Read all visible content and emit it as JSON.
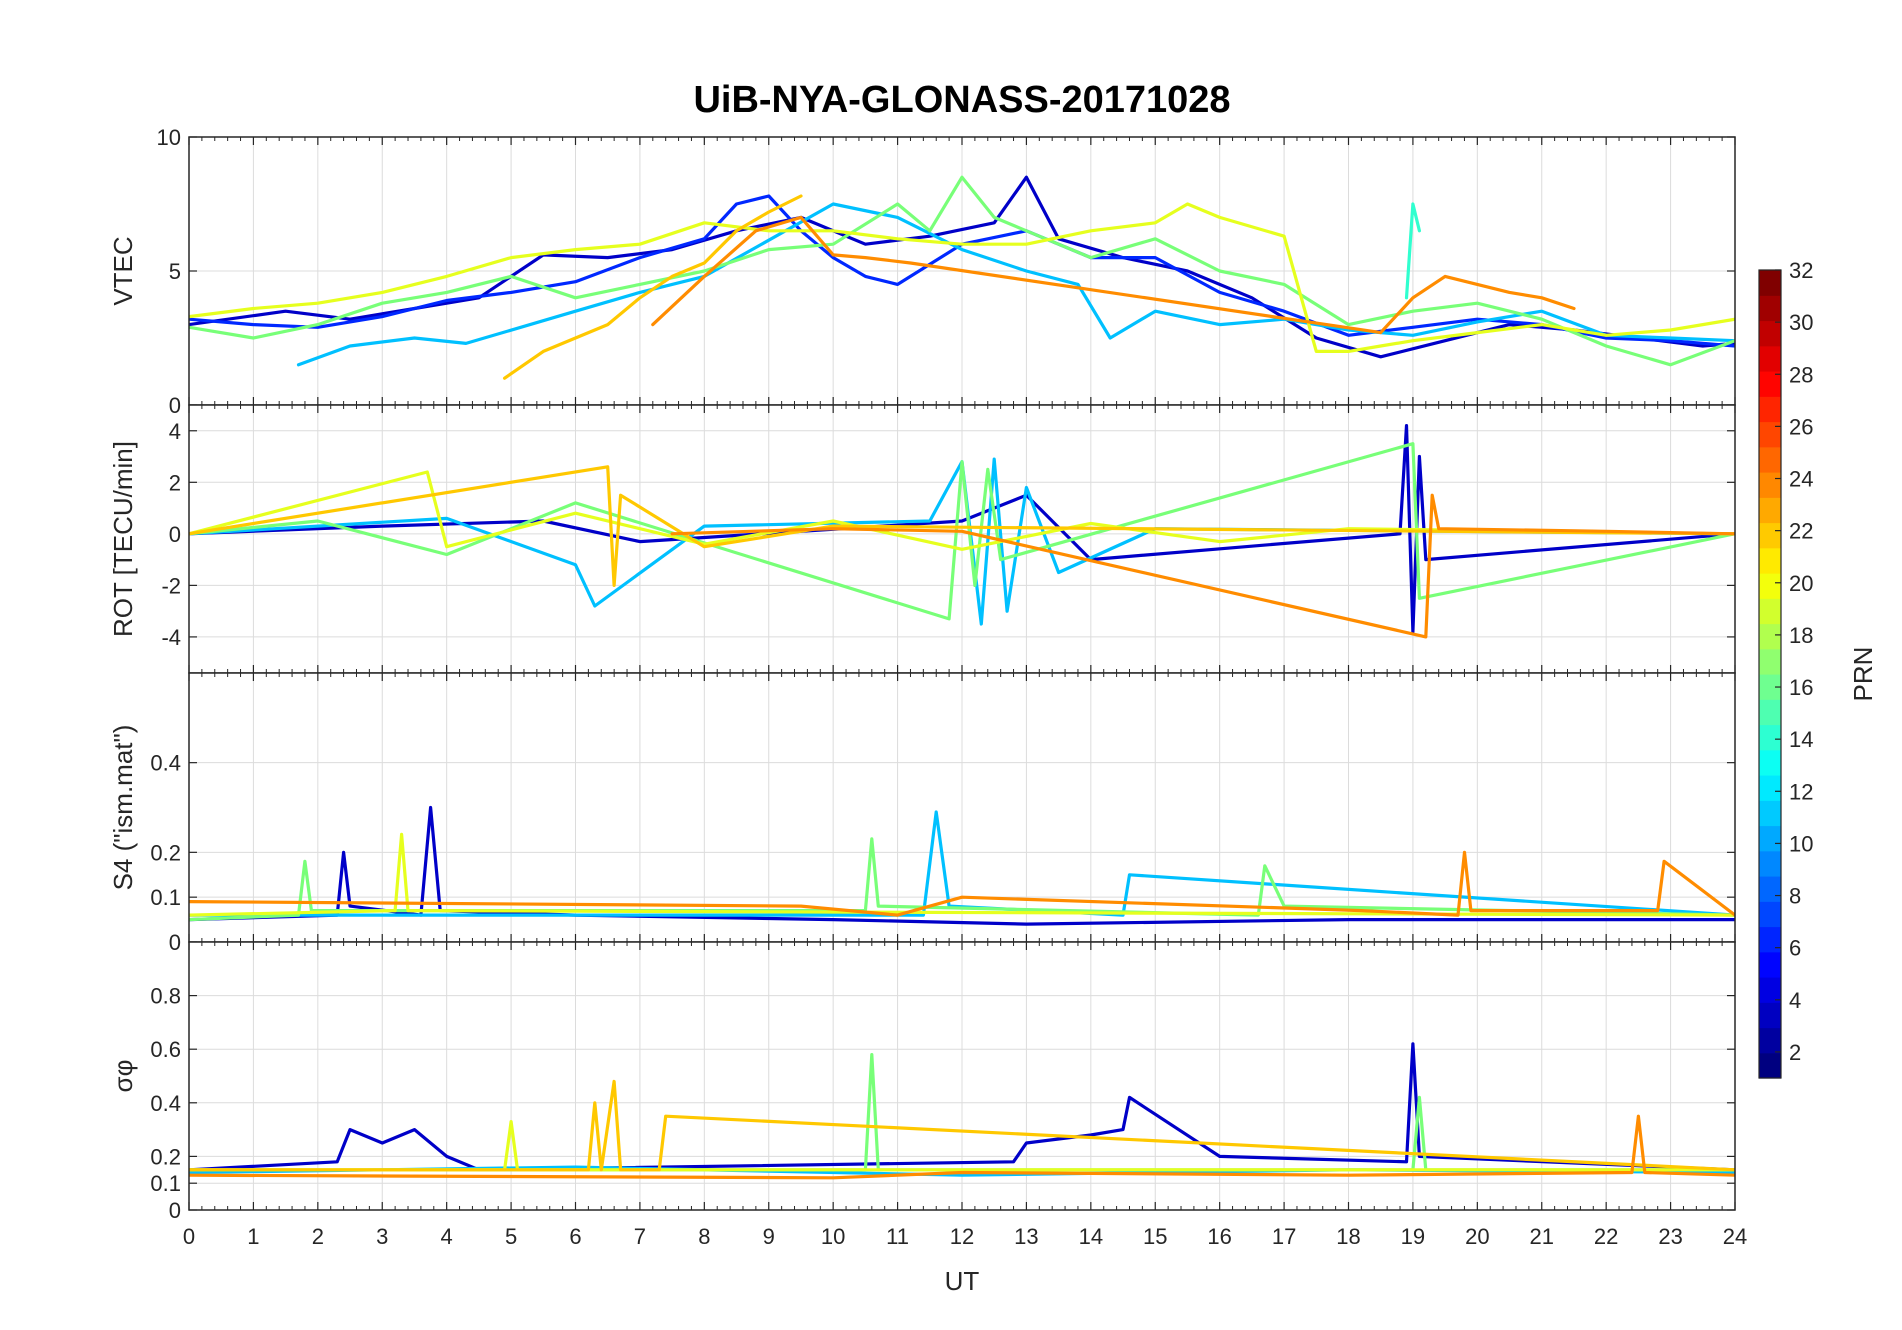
{
  "chart_data": {
    "type": "line",
    "title": "UiB-NYA-GLONASS-20171028",
    "xlabel": "UT",
    "xlim": [
      0,
      24
    ],
    "x_ticks": [
      "0",
      "1",
      "2",
      "3",
      "4",
      "5",
      "6",
      "7",
      "8",
      "9",
      "10",
      "11",
      "12",
      "13",
      "14",
      "15",
      "16",
      "17",
      "18",
      "19",
      "20",
      "21",
      "22",
      "23",
      "24"
    ],
    "colorbar": {
      "label": "PRN",
      "range": [
        1,
        32
      ],
      "ticks": [
        "2",
        "4",
        "6",
        "8",
        "10",
        "12",
        "14",
        "16",
        "18",
        "20",
        "22",
        "24",
        "26",
        "28",
        "30",
        "32"
      ],
      "colormap": "jet"
    },
    "panels": [
      {
        "id": "vtec",
        "ylabel": "VTEC",
        "ylim": [
          0,
          10
        ],
        "y_ticks": [
          "0",
          "5",
          "10"
        ],
        "series": [
          {
            "prn": 3,
            "color": "#0000c8",
            "x": [
              0.0,
              1.5,
              2.5,
              3.5,
              4.5,
              5.5,
              6.5,
              7.5,
              8.5,
              9.5,
              10.5,
              11.5,
              12.5,
              13.0,
              13.5,
              14.5,
              15.5,
              16.5,
              17.5,
              18.5,
              19.5,
              20.5,
              21.5,
              22.5,
              23.5,
              24.0
            ],
            "y": [
              3.0,
              3.5,
              3.2,
              3.6,
              4.0,
              5.6,
              5.5,
              5.8,
              6.5,
              7.0,
              6.0,
              6.3,
              6.8,
              8.5,
              6.2,
              5.5,
              5.0,
              4.0,
              2.5,
              1.8,
              2.4,
              3.0,
              2.8,
              2.5,
              2.2,
              2.3
            ]
          },
          {
            "prn": 5,
            "color": "#0028ff",
            "x": [
              0.0,
              1.0,
              2.0,
              3.0,
              4.0,
              5.0,
              6.0,
              7.0,
              8.0,
              8.5,
              9.0,
              9.5,
              10.0,
              10.5,
              11.0,
              12.0,
              13.0,
              14.0,
              15.0,
              16.0,
              17.0,
              18.0,
              19.0,
              20.0,
              21.0,
              22.0,
              23.0,
              24.0
            ],
            "y": [
              3.2,
              3.0,
              2.9,
              3.3,
              3.9,
              4.2,
              4.6,
              5.5,
              6.2,
              7.5,
              7.8,
              6.5,
              5.5,
              4.8,
              4.5,
              6.0,
              6.5,
              5.5,
              5.5,
              4.2,
              3.5,
              2.6,
              2.9,
              3.2,
              3.0,
              2.5,
              2.4,
              2.2
            ]
          },
          {
            "prn": 11,
            "color": "#00c0ff",
            "x": [
              1.7,
              2.5,
              3.5,
              4.3,
              6.0,
              7.0,
              8.0,
              10.0,
              11.0,
              12.0,
              13.0,
              13.8,
              14.3,
              15.0,
              16.0,
              17.0,
              18.0,
              19.0,
              20.0,
              21.0,
              22.0,
              23.0,
              24.0
            ],
            "y": [
              1.5,
              2.2,
              2.5,
              2.3,
              3.5,
              4.2,
              4.8,
              7.5,
              7.0,
              5.8,
              5.0,
              4.5,
              2.5,
              3.5,
              3.0,
              3.2,
              2.8,
              2.6,
              3.1,
              3.5,
              2.6,
              2.5,
              2.4
            ]
          },
          {
            "prn": 16,
            "color": "#78ff78",
            "x": [
              0.0,
              1.0,
              2.0,
              3.0,
              4.0,
              5.0,
              6.0,
              7.0,
              8.0,
              9.0,
              10.0,
              11.0,
              11.5,
              12.0,
              12.5,
              13.0,
              14.0,
              15.0,
              16.0,
              17.0,
              18.0,
              19.0,
              20.0,
              21.0,
              22.0,
              23.0,
              24.0
            ],
            "y": [
              2.9,
              2.5,
              3.0,
              3.8,
              4.2,
              4.8,
              4.0,
              4.5,
              5.0,
              5.8,
              6.0,
              7.5,
              6.5,
              8.5,
              7.0,
              6.5,
              5.5,
              6.2,
              5.0,
              4.5,
              3.0,
              3.5,
              3.8,
              3.2,
              2.2,
              1.5,
              2.4
            ]
          },
          {
            "prn": 19,
            "color": "#e6ff1e",
            "x": [
              0.0,
              1.0,
              2.0,
              3.0,
              4.0,
              5.0,
              6.0,
              7.0,
              8.0,
              9.0,
              10.0,
              11.0,
              12.0,
              13.0,
              14.0,
              15.0,
              15.5,
              16.0,
              17.0,
              17.5,
              18.0,
              18.5,
              19.0,
              20.0,
              21.0,
              22.0,
              23.0,
              24.0
            ],
            "y": [
              3.3,
              3.6,
              3.8,
              4.2,
              4.8,
              5.5,
              5.8,
              6.0,
              6.8,
              6.5,
              6.5,
              6.2,
              6.0,
              6.0,
              6.5,
              6.8,
              7.5,
              7.0,
              6.3,
              2.0,
              2.0,
              2.2,
              2.4,
              2.7,
              3.0,
              2.6,
              2.8,
              3.2
            ]
          },
          {
            "prn": 21,
            "color": "#ffc800",
            "x": [
              4.9,
              5.5,
              6.0,
              6.5,
              7.0,
              7.5,
              8.0,
              8.5,
              9.0,
              9.5
            ],
            "y": [
              1.0,
              2.0,
              2.5,
              3.0,
              4.0,
              4.8,
              5.3,
              6.5,
              7.2,
              7.8
            ]
          },
          {
            "prn": 23,
            "color": "#ff8c00",
            "x": [
              7.2,
              8.0,
              8.8,
              9.5,
              10.0,
              10.5,
              11.2,
              18.5,
              19.0,
              19.5,
              20.0,
              20.5,
              21.0,
              21.5
            ],
            "y": [
              3.0,
              4.8,
              6.5,
              7.0,
              5.6,
              5.5,
              5.3,
              2.7,
              4.0,
              4.8,
              4.5,
              4.2,
              4.0,
              3.6
            ]
          },
          {
            "prn": 13,
            "color": "#30ffcf",
            "x": [
              18.9,
              19.0,
              19.1
            ],
            "y": [
              4.0,
              7.5,
              6.5
            ]
          }
        ]
      },
      {
        "id": "rot",
        "ylabel": "ROT [TECU/min]",
        "ylim": [
          -5.4,
          5
        ],
        "y_ticks": [
          "-4",
          "-2",
          "0",
          "2",
          "4"
        ],
        "series": [
          {
            "prn": 3,
            "color": "#0000c8",
            "x": [
              0.0,
              3.0,
              5.5,
              7.0,
              12.0,
              13.0,
              14.0,
              18.8,
              18.9,
              19.0,
              19.1,
              19.2,
              24.0
            ],
            "y": [
              0.0,
              0.3,
              0.5,
              -0.3,
              0.5,
              1.5,
              -1.0,
              0.0,
              4.2,
              -3.8,
              3.0,
              -1.0,
              0.0
            ]
          },
          {
            "prn": 11,
            "color": "#00c0ff",
            "x": [
              0.0,
              4.0,
              6.0,
              6.3,
              8.0,
              11.5,
              12.0,
              12.3,
              12.5,
              12.7,
              13.0,
              13.5,
              15.0,
              24.0
            ],
            "y": [
              0.0,
              0.6,
              -1.2,
              -2.8,
              0.3,
              0.5,
              2.8,
              -3.5,
              2.9,
              -3.0,
              1.8,
              -1.5,
              0.2,
              0.0
            ]
          },
          {
            "prn": 16,
            "color": "#78ff78",
            "x": [
              0.0,
              2.0,
              4.0,
              6.0,
              11.8,
              12.0,
              12.2,
              12.4,
              12.6,
              19.0,
              19.1,
              24.0
            ],
            "y": [
              0.0,
              0.5,
              -0.8,
              1.2,
              -3.3,
              2.8,
              -2.0,
              2.5,
              -1.0,
              3.5,
              -2.5,
              0.0
            ]
          },
          {
            "prn": 19,
            "color": "#e6ff1e",
            "x": [
              0.0,
              3.7,
              4.0,
              6.0,
              8.0,
              10.0,
              12.0,
              14.0,
              16.0,
              18.0,
              24.0
            ],
            "y": [
              0.0,
              2.4,
              -0.5,
              0.8,
              -0.4,
              0.5,
              -0.6,
              0.4,
              -0.3,
              0.2,
              0.0
            ]
          },
          {
            "prn": 21,
            "color": "#ffc800",
            "x": [
              0.0,
              6.5,
              6.6,
              6.7,
              8.0,
              10.0,
              24.0
            ],
            "y": [
              0.0,
              2.6,
              -2.0,
              1.5,
              -0.5,
              0.3,
              0.0
            ]
          },
          {
            "prn": 23,
            "color": "#ff8c00",
            "x": [
              7.5,
              10.0,
              12.0,
              19.2,
              19.3,
              19.4,
              22.0,
              24.0
            ],
            "y": [
              0.0,
              0.2,
              0.1,
              -4.0,
              1.5,
              0.2,
              0.1,
              0.0
            ]
          }
        ]
      },
      {
        "id": "s4",
        "ylabel": "S4 (\"ism.mat\")",
        "ylim": [
          0,
          0.6
        ],
        "y_ticks": [
          "0",
          "0.1",
          "0.2",
          "0.4"
        ],
        "series": [
          {
            "prn": 3,
            "color": "#0000c8",
            "x": [
              0.0,
              2.3,
              2.4,
              2.5,
              3.6,
              3.75,
              3.9,
              6.0,
              10.0,
              13.0,
              18.0,
              24.0
            ],
            "y": [
              0.05,
              0.06,
              0.2,
              0.08,
              0.06,
              0.3,
              0.07,
              0.06,
              0.05,
              0.04,
              0.05,
              0.05
            ]
          },
          {
            "prn": 11,
            "color": "#00c0ff",
            "x": [
              0.0,
              5.0,
              11.4,
              11.6,
              11.8,
              14.5,
              14.6,
              24.0
            ],
            "y": [
              0.06,
              0.06,
              0.06,
              0.29,
              0.08,
              0.06,
              0.15,
              0.06
            ]
          },
          {
            "prn": 16,
            "color": "#78ff78",
            "x": [
              0.0,
              1.7,
              1.8,
              1.9,
              10.5,
              10.6,
              10.7,
              16.6,
              16.7,
              17.0,
              24.0
            ],
            "y": [
              0.05,
              0.06,
              0.18,
              0.07,
              0.07,
              0.23,
              0.08,
              0.06,
              0.17,
              0.08,
              0.06
            ]
          },
          {
            "prn": 19,
            "color": "#e6ff1e",
            "x": [
              0.0,
              3.2,
              3.3,
              3.4,
              24.0
            ],
            "y": [
              0.06,
              0.07,
              0.24,
              0.07,
              0.06
            ]
          },
          {
            "prn": 23,
            "color": "#ff8c00",
            "x": [
              0.0,
              9.5,
              11.0,
              12.0,
              18.2,
              19.7,
              19.8,
              19.9,
              22.8,
              22.9,
              24.0
            ],
            "y": [
              0.09,
              0.08,
              0.06,
              0.1,
              0.07,
              0.06,
              0.2,
              0.07,
              0.07,
              0.18,
              0.06
            ]
          }
        ]
      },
      {
        "id": "sigma_phi",
        "ylabel": "σφ",
        "ylim": [
          0,
          1
        ],
        "y_ticks": [
          "0",
          "0.1",
          "0.2",
          "0.4",
          "0.6",
          "0.8"
        ],
        "series": [
          {
            "prn": 3,
            "color": "#0000c8",
            "x": [
              0.0,
              2.3,
              2.5,
              3.0,
              3.5,
              4.0,
              4.5,
              12.8,
              13.0,
              14.0,
              14.5,
              14.6,
              16.0,
              18.9,
              19.0,
              19.1,
              24.0
            ],
            "y": [
              0.15,
              0.18,
              0.3,
              0.25,
              0.3,
              0.2,
              0.15,
              0.18,
              0.25,
              0.28,
              0.3,
              0.42,
              0.2,
              0.18,
              0.62,
              0.2,
              0.15
            ]
          },
          {
            "prn": 11,
            "color": "#00c0ff",
            "x": [
              0.0,
              6.0,
              12.0,
              18.0,
              24.0
            ],
            "y": [
              0.14,
              0.16,
              0.13,
              0.15,
              0.14
            ]
          },
          {
            "prn": 16,
            "color": "#78ff78",
            "x": [
              0.0,
              10.5,
              10.6,
              10.7,
              19.0,
              19.1,
              19.2,
              24.0
            ],
            "y": [
              0.15,
              0.15,
              0.58,
              0.15,
              0.15,
              0.42,
              0.15,
              0.15
            ]
          },
          {
            "prn": 19,
            "color": "#e6ff1e",
            "x": [
              0.0,
              4.9,
              5.0,
              5.1,
              24.0
            ],
            "y": [
              0.15,
              0.15,
              0.33,
              0.15,
              0.15
            ]
          },
          {
            "prn": 21,
            "color": "#ffc800",
            "x": [
              0.0,
              6.2,
              6.3,
              6.4,
              6.6,
              6.7,
              7.3,
              7.4,
              24.0
            ],
            "y": [
              0.15,
              0.15,
              0.4,
              0.15,
              0.48,
              0.15,
              0.15,
              0.35,
              0.15
            ]
          },
          {
            "prn": 23,
            "color": "#ff8c00",
            "x": [
              0.0,
              10.0,
              12.0,
              18.0,
              22.4,
              22.5,
              22.6,
              24.0
            ],
            "y": [
              0.13,
              0.12,
              0.14,
              0.13,
              0.14,
              0.35,
              0.14,
              0.13
            ]
          }
        ]
      }
    ]
  }
}
